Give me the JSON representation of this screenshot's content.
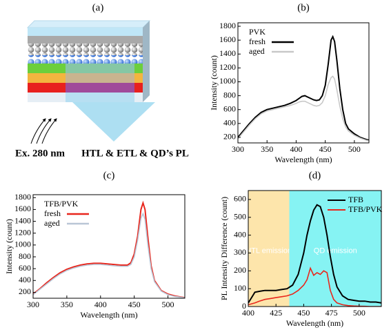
{
  "diagram": {
    "label": "(a)",
    "excitation": "Ex. 280 nm",
    "emission": "HTL & ETL & QD’s PL"
  },
  "chart_data": [
    {
      "type": "line",
      "title": "(b)",
      "x_label": "Wavelength (nm)",
      "y_label": "Intensity (count)",
      "xlim": [
        300,
        525
      ],
      "xticks": [
        300,
        350,
        400,
        450,
        500
      ],
      "ylim": [
        120,
        1850
      ],
      "yticks": [
        200,
        400,
        600,
        800,
        1000,
        1200,
        1400,
        1600,
        1800
      ],
      "legend_title": "PVK",
      "legend": "upper left",
      "x": [
        300,
        310,
        320,
        330,
        340,
        350,
        360,
        370,
        380,
        390,
        400,
        405,
        410,
        415,
        420,
        425,
        430,
        435,
        440,
        445,
        450,
        455,
        460,
        463,
        466,
        470,
        475,
        480,
        485,
        490,
        500,
        510,
        520,
        525
      ],
      "series": [
        {
          "name": "fresh",
          "color": "#000000",
          "values": [
            200,
            300,
            400,
            490,
            560,
            600,
            620,
            640,
            660,
            690,
            730,
            760,
            790,
            800,
            780,
            760,
            740,
            730,
            740,
            800,
            950,
            1250,
            1600,
            1650,
            1580,
            1300,
            900,
            600,
            400,
            320,
            250,
            200,
            170,
            160
          ]
        },
        {
          "name": "aged",
          "color": "#c8c8c8",
          "values": [
            180,
            280,
            380,
            470,
            540,
            580,
            600,
            620,
            640,
            660,
            690,
            710,
            720,
            720,
            700,
            680,
            660,
            650,
            660,
            700,
            800,
            960,
            1060,
            1080,
            1040,
            880,
            650,
            470,
            350,
            290,
            230,
            190,
            160,
            150
          ]
        }
      ]
    },
    {
      "type": "line",
      "title": "(c)",
      "x_label": "Wavelength (nm)",
      "y_label": "Intensity (count)",
      "xlim": [
        300,
        525
      ],
      "xticks": [
        300,
        350,
        400,
        450,
        500
      ],
      "ylim": [
        100,
        1850
      ],
      "yticks": [
        200,
        400,
        600,
        800,
        1000,
        1200,
        1400,
        1600,
        1800
      ],
      "legend_title": "TFB/PVK",
      "legend": "upper left",
      "x": [
        300,
        310,
        320,
        330,
        340,
        350,
        360,
        370,
        380,
        390,
        400,
        410,
        420,
        430,
        440,
        445,
        450,
        455,
        460,
        463,
        466,
        470,
        475,
        480,
        490,
        500,
        510,
        520,
        525
      ],
      "series": [
        {
          "name": "fresh",
          "color": "#e8261c",
          "values": [
            170,
            260,
            360,
            450,
            530,
            590,
            630,
            660,
            680,
            690,
            690,
            680,
            670,
            660,
            660,
            700,
            850,
            1150,
            1600,
            1710,
            1600,
            1150,
            650,
            400,
            230,
            170,
            140,
            120,
            110
          ]
        },
        {
          "name": "aged",
          "color": "#b9c6d6",
          "values": [
            160,
            250,
            340,
            430,
            510,
            570,
            610,
            640,
            660,
            670,
            670,
            660,
            650,
            640,
            640,
            670,
            800,
            1080,
            1450,
            1530,
            1430,
            1020,
            600,
            380,
            220,
            160,
            130,
            115,
            105
          ]
        }
      ]
    },
    {
      "type": "line",
      "title": "(d)",
      "x_label": "Wavelength (nm)",
      "y_label": "PL Intensity Difference (count)",
      "xlim": [
        400,
        520
      ],
      "xticks": [
        400,
        425,
        450,
        475,
        500
      ],
      "ylim": [
        0,
        650
      ],
      "yticks": [
        0,
        100,
        200,
        300,
        400,
        500,
        600
      ],
      "legend": "upper right",
      "regions": [
        {
          "label": "HTL emission",
          "range": [
            400,
            437
          ],
          "color": "#fde5ab"
        },
        {
          "label": "QD emission",
          "range": [
            437,
            520
          ],
          "color": "#86f3f3"
        }
      ],
      "x": [
        400,
        403,
        406,
        410,
        415,
        420,
        425,
        430,
        435,
        440,
        445,
        450,
        453,
        456,
        459,
        462,
        465,
        468,
        471,
        474,
        477,
        480,
        485,
        490,
        495,
        500,
        505,
        510,
        515,
        520
      ],
      "series": [
        {
          "name": "TFB",
          "color": "#000000",
          "values": [
            20,
            50,
            80,
            85,
            90,
            90,
            90,
            95,
            100,
            120,
            180,
            300,
            400,
            480,
            540,
            570,
            560,
            500,
            400,
            280,
            180,
            110,
            60,
            40,
            35,
            30,
            30,
            25,
            25,
            20
          ]
        },
        {
          "name": "TFB/PVK",
          "color": "#e8261c",
          "values": [
            10,
            15,
            20,
            30,
            40,
            45,
            50,
            55,
            60,
            70,
            90,
            120,
            150,
            215,
            175,
            190,
            180,
            200,
            190,
            90,
            40,
            20,
            10,
            5,
            3,
            2,
            1,
            0,
            0,
            0
          ]
        }
      ]
    }
  ]
}
